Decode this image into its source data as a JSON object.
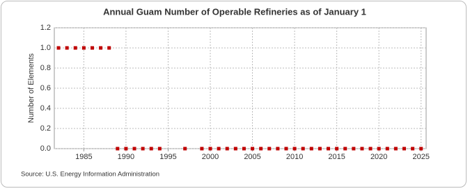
{
  "chart_data": {
    "type": "scatter",
    "title": "Annual Guam Number of Operable Refineries as of January 1",
    "ylabel": "Number of Elements",
    "source": "Source: U.S. Energy Information Administration",
    "x": [
      1982,
      1983,
      1984,
      1985,
      1986,
      1987,
      1988,
      1989,
      1990,
      1991,
      1992,
      1993,
      1994,
      1995,
      1996,
      1997,
      1998,
      1999,
      2000,
      2001,
      2002,
      2003,
      2004,
      2005,
      2006,
      2007,
      2008,
      2009,
      2010,
      2011,
      2012,
      2013,
      2014,
      2015,
      2016,
      2017,
      2018,
      2019,
      2020,
      2021,
      2022,
      2023,
      2024,
      2025
    ],
    "values": [
      1,
      1,
      1,
      1,
      1,
      1,
      1,
      0,
      0,
      0,
      0,
      0,
      0,
      null,
      null,
      0,
      null,
      0,
      0,
      0,
      0,
      0,
      0,
      0,
      0,
      0,
      0,
      0,
      0,
      0,
      0,
      0,
      0,
      0,
      0,
      0,
      0,
      0,
      0,
      0,
      0,
      0,
      0,
      0
    ],
    "color": "#c00000",
    "xlim": [
      1981.5,
      2025.6
    ],
    "xticks": [
      1985,
      1990,
      1995,
      2000,
      2005,
      2010,
      2015,
      2020,
      2025
    ],
    "ylim": [
      0,
      1.2
    ],
    "yticks": [
      {
        "value": 0,
        "label": "0.0"
      },
      0.2,
      0.4,
      0.6,
      0.8,
      {
        "value": 1,
        "label": "1.0"
      },
      1.2
    ],
    "grid": true
  }
}
